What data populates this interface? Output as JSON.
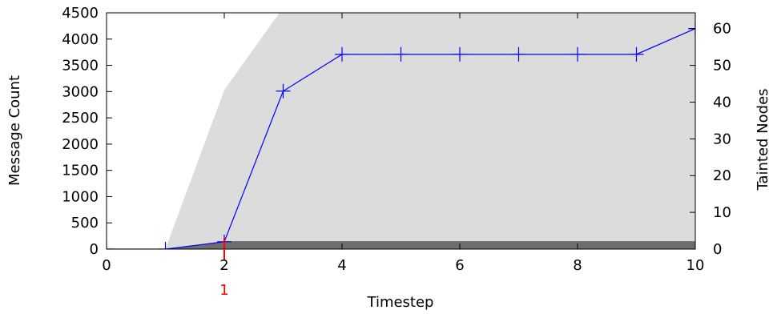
{
  "chart_data": {
    "type": "area",
    "title": "",
    "xlabel": "Timestep",
    "ylabel": "Message Count",
    "y2label": "Tainted Nodes",
    "xlim": [
      0,
      10
    ],
    "ylim": [
      0,
      4500
    ],
    "y2lim": [
      0,
      64.3
    ],
    "x_ticks": [
      0,
      2,
      4,
      6,
      8,
      10
    ],
    "y_ticks": [
      0,
      500,
      1000,
      1500,
      2000,
      2500,
      3000,
      3500,
      4000,
      4500
    ],
    "y2_ticks": [
      0,
      10,
      20,
      30,
      40,
      50,
      60
    ],
    "grid": false,
    "legend": "none",
    "series": [
      {
        "axis": "left",
        "style": "filled-area",
        "color": "#dcdcdc",
        "x": [
          0,
          1,
          2,
          3,
          4,
          5,
          6,
          7,
          8,
          9,
          10
        ],
        "y": [
          0,
          0,
          3030,
          4600,
          4600,
          4600,
          4600,
          4600,
          4600,
          4600,
          4600
        ]
      },
      {
        "axis": "left",
        "style": "filled-area",
        "color": "#6e6e6e",
        "x": [
          0,
          1,
          2,
          3,
          4,
          5,
          6,
          7,
          8,
          9,
          10
        ],
        "y": [
          0,
          0,
          150,
          150,
          150,
          150,
          150,
          150,
          150,
          150,
          150
        ]
      },
      {
        "axis": "right",
        "style": "line-markers",
        "color": "#0000ff",
        "marker": "plus",
        "x": [
          0,
          1,
          2,
          3,
          4,
          5,
          6,
          7,
          8,
          9,
          10
        ],
        "y": [
          0,
          0,
          2,
          43,
          53,
          53,
          53,
          53,
          53,
          53,
          60
        ]
      }
    ],
    "annotations": [
      {
        "x": 2,
        "label": "1",
        "color": "#ff0000"
      }
    ]
  }
}
